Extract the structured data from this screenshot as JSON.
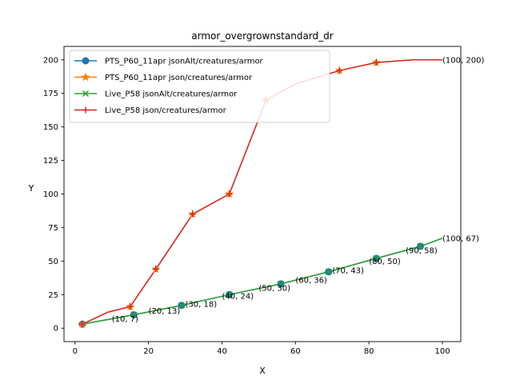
{
  "chart_data": {
    "type": "line",
    "title": "armor_overgrownstandard_dr",
    "xlabel": "X",
    "ylabel": "Y",
    "xlim": [
      -3,
      105
    ],
    "ylim": [
      -10,
      210
    ],
    "xticks": [
      0,
      20,
      40,
      60,
      80,
      100
    ],
    "yticks": [
      0,
      25,
      50,
      75,
      100,
      125,
      150,
      175,
      200
    ],
    "grid": false,
    "legend_position": "top-left",
    "series": [
      {
        "name": "PTS_P60_11apr jsonAlt/creatures/armor",
        "color": "#1f77b4",
        "marker": "circle",
        "x": [
          2,
          16,
          29,
          42,
          56,
          69,
          82,
          94,
          100
        ],
        "y": [
          3,
          10,
          17,
          25,
          33,
          42,
          52,
          61,
          67
        ],
        "marker_x": [
          2,
          16,
          29,
          42,
          56,
          69,
          82,
          94
        ],
        "marker_y": [
          3,
          10,
          17,
          25,
          33,
          42,
          52,
          61
        ]
      },
      {
        "name": "PTS_P60_11apr json/creatures/armor",
        "color": "#ff7f0e",
        "marker": "star",
        "x": [
          1,
          2,
          9,
          15,
          22,
          32,
          42,
          52,
          60,
          72,
          82,
          92,
          100
        ],
        "y": [
          3,
          3,
          12,
          16,
          44,
          85,
          100,
          170,
          182,
          192,
          198,
          200,
          200
        ],
        "marker_x": [
          2,
          15,
          22,
          32,
          42,
          52,
          72,
          82
        ],
        "marker_y": [
          3,
          16,
          44,
          85,
          100,
          170,
          192,
          198
        ]
      },
      {
        "name": "Live_P58 jsonAlt/creatures/armor",
        "color": "#2ca02c",
        "marker": "x",
        "x": [
          1,
          2,
          16,
          29,
          42,
          56,
          69,
          82,
          94,
          100
        ],
        "y": [
          3,
          3,
          10,
          17,
          25,
          33,
          42,
          52,
          61,
          67
        ],
        "marker_x": [
          16,
          29,
          42,
          56,
          69,
          82,
          94
        ],
        "marker_y": [
          10,
          17,
          25,
          33,
          42,
          52,
          61
        ]
      },
      {
        "name": "Live_P58 json/creatures/armor",
        "color": "#d62728",
        "marker": "plus",
        "x": [
          1,
          2,
          9,
          15,
          22,
          32,
          42,
          52,
          60,
          72,
          82,
          92,
          100
        ],
        "y": [
          3,
          3,
          12,
          16,
          44,
          85,
          100,
          170,
          182,
          192,
          198,
          200,
          200
        ],
        "marker_x": [
          2,
          15,
          22,
          32,
          42,
          52,
          72,
          82
        ],
        "marker_y": [
          3,
          16,
          44,
          85,
          100,
          170,
          192,
          198
        ]
      }
    ],
    "annotations": [
      {
        "text": "(10, 7)",
        "x": 10,
        "y": 7
      },
      {
        "text": "(20, 13)",
        "x": 20,
        "y": 13
      },
      {
        "text": "(30, 18)",
        "x": 30,
        "y": 18
      },
      {
        "text": "(40, 24)",
        "x": 40,
        "y": 24
      },
      {
        "text": "(50, 30)",
        "x": 50,
        "y": 30
      },
      {
        "text": "(60, 36)",
        "x": 60,
        "y": 36
      },
      {
        "text": "(70, 43)",
        "x": 70,
        "y": 43
      },
      {
        "text": "(80, 50)",
        "x": 80,
        "y": 50
      },
      {
        "text": "(90, 58)",
        "x": 90,
        "y": 58
      },
      {
        "text": "(100, 67)",
        "x": 100,
        "y": 67
      },
      {
        "text": "(100, 200)",
        "x": 100,
        "y": 200
      }
    ]
  }
}
